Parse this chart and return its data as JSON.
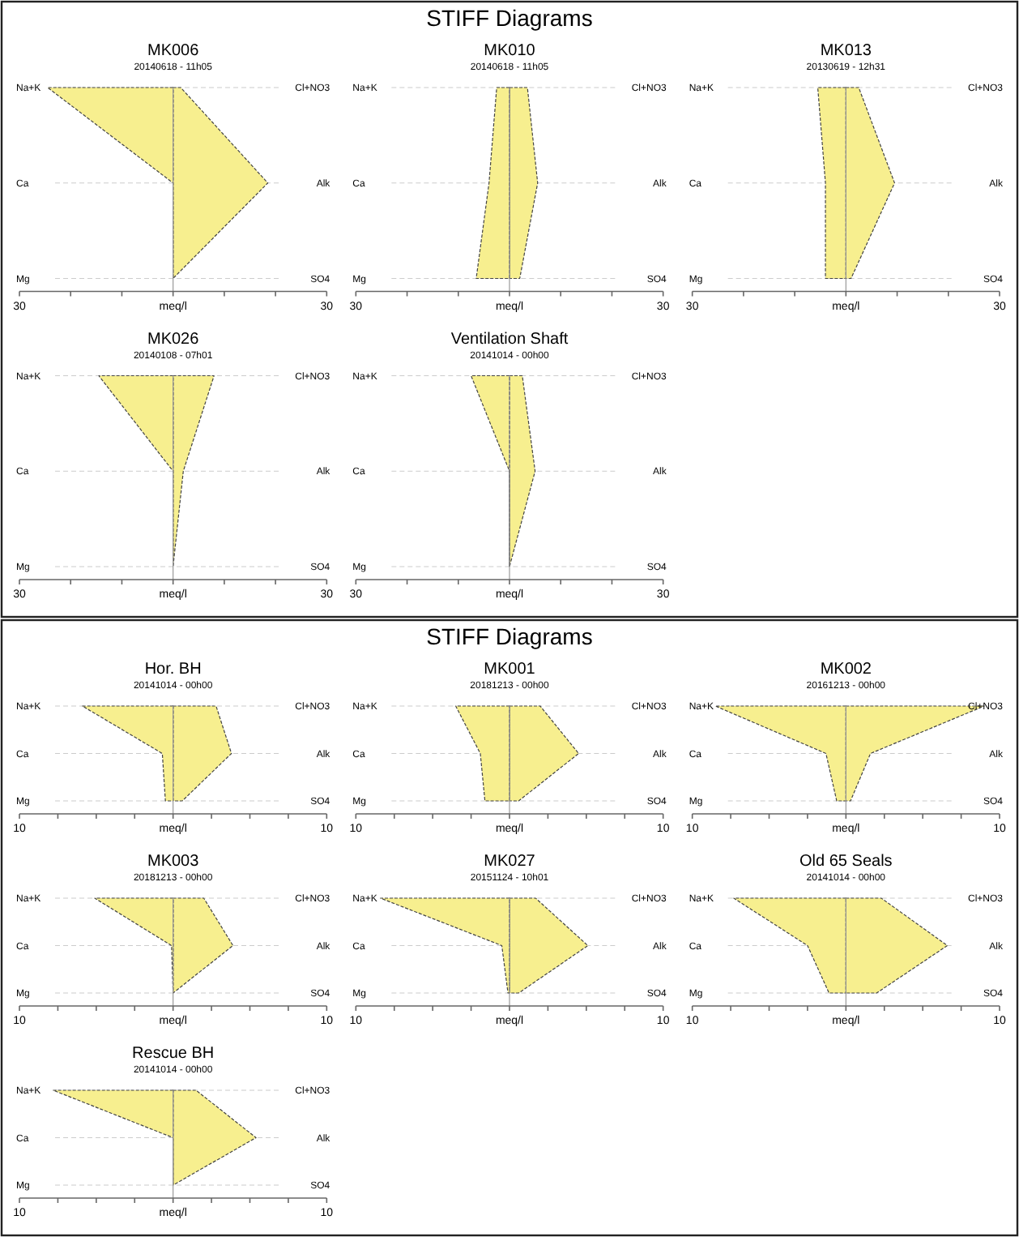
{
  "chart_data": [
    {
      "type": "area",
      "orientation": "horizontal",
      "annotations": [
        "STIFF Diagrams"
      ],
      "title": "MK006",
      "subtitle": "20140618 - 11h05",
      "xlabel": "meq/l",
      "categories": [
        "Na+K",
        "Ca",
        "Mg"
      ],
      "y2_categories": [
        "Cl+NO3",
        "Alk",
        "SO4"
      ],
      "series": [
        {
          "color": "#f7ef8f",
          "values": [
            -24.5,
            0,
            0
          ]
        },
        {
          "color": "#f7ef8f",
          "values": [
            1.5,
            18.5,
            0
          ]
        }
      ],
      "xlim": [
        -30,
        30
      ],
      "xticks": [
        {
          "value": -30,
          "label": "30"
        },
        {
          "value": -20,
          "label": null
        },
        {
          "value": -10,
          "label": null
        },
        {
          "value": 0,
          "label": null
        },
        {
          "value": 10,
          "label": null
        },
        {
          "value": 20,
          "label": null
        },
        {
          "value": 30,
          "label": "30"
        }
      ],
      "grid": "y"
    },
    {
      "type": "area",
      "orientation": "horizontal",
      "title": "MK010",
      "subtitle": "20140618 - 11h05",
      "xlabel": "meq/l",
      "categories": [
        "Na+K",
        "Ca",
        "Mg"
      ],
      "y2_categories": [
        "Cl+NO3",
        "Alk",
        "SO4"
      ],
      "series": [
        {
          "color": "#f7ef8f",
          "values": [
            -2.5,
            -4,
            -6.5
          ]
        },
        {
          "color": "#f7ef8f",
          "values": [
            3.5,
            5.5,
            2
          ]
        }
      ],
      "xlim": [
        -30,
        30
      ],
      "xticks": [
        {
          "value": -30,
          "label": "30"
        },
        {
          "value": -20,
          "label": null
        },
        {
          "value": -10,
          "label": null
        },
        {
          "value": 0,
          "label": null
        },
        {
          "value": 10,
          "label": null
        },
        {
          "value": 20,
          "label": null
        },
        {
          "value": 30,
          "label": "30"
        }
      ],
      "grid": "y"
    },
    {
      "type": "area",
      "orientation": "horizontal",
      "title": "MK013",
      "subtitle": "20130619 - 12h31",
      "xlabel": "meq/l",
      "categories": [
        "Na+K",
        "Ca",
        "Mg"
      ],
      "y2_categories": [
        "Cl+NO3",
        "Alk",
        "SO4"
      ],
      "series": [
        {
          "color": "#f7ef8f",
          "values": [
            -5.5,
            -4,
            -4
          ]
        },
        {
          "color": "#f7ef8f",
          "values": [
            2.5,
            9.5,
            1
          ]
        }
      ],
      "xlim": [
        -30,
        30
      ],
      "xticks": [
        {
          "value": -30,
          "label": "30"
        },
        {
          "value": -20,
          "label": null
        },
        {
          "value": -10,
          "label": null
        },
        {
          "value": 0,
          "label": null
        },
        {
          "value": 10,
          "label": null
        },
        {
          "value": 20,
          "label": null
        },
        {
          "value": 30,
          "label": "30"
        }
      ],
      "grid": "y"
    },
    {
      "type": "area",
      "orientation": "horizontal",
      "title": "MK026",
      "subtitle": "20140108 - 07h01",
      "xlabel": "meq/l",
      "categories": [
        "Na+K",
        "Ca",
        "Mg"
      ],
      "y2_categories": [
        "Cl+NO3",
        "Alk",
        "SO4"
      ],
      "series": [
        {
          "color": "#f7ef8f",
          "values": [
            -14.5,
            0,
            0
          ]
        },
        {
          "color": "#f7ef8f",
          "values": [
            8,
            2,
            0
          ]
        }
      ],
      "xlim": [
        -30,
        30
      ],
      "xticks": [
        {
          "value": -30,
          "label": "30"
        },
        {
          "value": -20,
          "label": null
        },
        {
          "value": -10,
          "label": null
        },
        {
          "value": 0,
          "label": null
        },
        {
          "value": 10,
          "label": null
        },
        {
          "value": 20,
          "label": null
        },
        {
          "value": 30,
          "label": "30"
        }
      ],
      "grid": "y"
    },
    {
      "type": "area",
      "orientation": "horizontal",
      "title": "Ventilation Shaft",
      "subtitle": "20141014 - 00h00",
      "xlabel": "meq/l",
      "categories": [
        "Na+K",
        "Ca",
        "Mg"
      ],
      "y2_categories": [
        "Cl+NO3",
        "Alk",
        "SO4"
      ],
      "series": [
        {
          "color": "#f7ef8f",
          "values": [
            -7.5,
            0,
            0
          ]
        },
        {
          "color": "#f7ef8f",
          "values": [
            2.5,
            5,
            0
          ]
        }
      ],
      "xlim": [
        -30,
        30
      ],
      "xticks": [
        {
          "value": -30,
          "label": "30"
        },
        {
          "value": -20,
          "label": null
        },
        {
          "value": -10,
          "label": null
        },
        {
          "value": 0,
          "label": null
        },
        {
          "value": 10,
          "label": null
        },
        {
          "value": 20,
          "label": null
        },
        {
          "value": 30,
          "label": "30"
        }
      ],
      "grid": "y"
    },
    {
      "type": "area",
      "orientation": "horizontal",
      "annotations": [
        "STIFF Diagrams"
      ],
      "title": "Hor. BH",
      "subtitle": "20141014 - 00h00",
      "xlabel": "meq/l",
      "categories": [
        "Na+K",
        "Ca",
        "Mg"
      ],
      "y2_categories": [
        "Cl+NO3",
        "Alk",
        "SO4"
      ],
      "series": [
        {
          "color": "#f7ef8f",
          "values": [
            -5.9,
            -0.7,
            -0.5
          ]
        },
        {
          "color": "#f7ef8f",
          "values": [
            2.8,
            3.8,
            0.6
          ]
        }
      ],
      "xlim": [
        -10,
        10
      ],
      "xticks": [
        {
          "value": -10,
          "label": "10"
        },
        {
          "value": -7.5,
          "label": null
        },
        {
          "value": -5,
          "label": null
        },
        {
          "value": -2.5,
          "label": null
        },
        {
          "value": 0,
          "label": null
        },
        {
          "value": 2.5,
          "label": null
        },
        {
          "value": 5,
          "label": null
        },
        {
          "value": 7.5,
          "label": null
        },
        {
          "value": 10,
          "label": "10"
        }
      ],
      "grid": "y"
    },
    {
      "type": "area",
      "orientation": "horizontal",
      "title": "MK001",
      "subtitle": "20181213 - 00h00",
      "xlabel": "meq/l",
      "categories": [
        "Na+K",
        "Ca",
        "Mg"
      ],
      "y2_categories": [
        "Cl+NO3",
        "Alk",
        "SO4"
      ],
      "series": [
        {
          "color": "#f7ef8f",
          "values": [
            -3.5,
            -1.9,
            -1.6
          ]
        },
        {
          "color": "#f7ef8f",
          "values": [
            2,
            4.5,
            0.6
          ]
        }
      ],
      "xlim": [
        -10,
        10
      ],
      "xticks": [
        {
          "value": -10,
          "label": "10"
        },
        {
          "value": -7.5,
          "label": null
        },
        {
          "value": -5,
          "label": null
        },
        {
          "value": -2.5,
          "label": null
        },
        {
          "value": 0,
          "label": null
        },
        {
          "value": 2.5,
          "label": null
        },
        {
          "value": 5,
          "label": null
        },
        {
          "value": 7.5,
          "label": null
        },
        {
          "value": 10,
          "label": "10"
        }
      ],
      "grid": "y"
    },
    {
      "type": "area",
      "orientation": "horizontal",
      "title": "MK002",
      "subtitle": "20161213 - 00h00",
      "xlabel": "meq/l",
      "categories": [
        "Na+K",
        "Ca",
        "Mg"
      ],
      "y2_categories": [
        "Cl+NO3",
        "Alk",
        "SO4"
      ],
      "series": [
        {
          "color": "#f7ef8f",
          "values": [
            -8.5,
            -1.3,
            -0.6
          ]
        },
        {
          "color": "#f7ef8f",
          "values": [
            9,
            1.6,
            0.3
          ]
        }
      ],
      "xlim": [
        -10,
        10
      ],
      "xticks": [
        {
          "value": -10,
          "label": "10"
        },
        {
          "value": -7.5,
          "label": null
        },
        {
          "value": -5,
          "label": null
        },
        {
          "value": -2.5,
          "label": null
        },
        {
          "value": 0,
          "label": null
        },
        {
          "value": 2.5,
          "label": null
        },
        {
          "value": 5,
          "label": null
        },
        {
          "value": 7.5,
          "label": null
        },
        {
          "value": 10,
          "label": "10"
        }
      ],
      "grid": "y"
    },
    {
      "type": "area",
      "orientation": "horizontal",
      "title": "MK003",
      "subtitle": "20181213 - 00h00",
      "xlabel": "meq/l",
      "categories": [
        "Na+K",
        "Ca",
        "Mg"
      ],
      "y2_categories": [
        "Cl+NO3",
        "Alk",
        "SO4"
      ],
      "series": [
        {
          "color": "#f7ef8f",
          "values": [
            -5.1,
            -0.1,
            0
          ]
        },
        {
          "color": "#f7ef8f",
          "values": [
            2,
            3.9,
            0
          ]
        }
      ],
      "xlim": [
        -10,
        10
      ],
      "xticks": [
        {
          "value": -10,
          "label": "10"
        },
        {
          "value": -7.5,
          "label": null
        },
        {
          "value": -5,
          "label": null
        },
        {
          "value": -2.5,
          "label": null
        },
        {
          "value": 0,
          "label": null
        },
        {
          "value": 2.5,
          "label": null
        },
        {
          "value": 5,
          "label": null
        },
        {
          "value": 7.5,
          "label": null
        },
        {
          "value": 10,
          "label": "10"
        }
      ],
      "grid": "y"
    },
    {
      "type": "area",
      "orientation": "horizontal",
      "title": "MK027",
      "subtitle": "20151124 - 10h01",
      "xlabel": "meq/l",
      "categories": [
        "Na+K",
        "Ca",
        "Mg"
      ],
      "y2_categories": [
        "Cl+NO3",
        "Alk",
        "SO4"
      ],
      "series": [
        {
          "color": "#f7ef8f",
          "values": [
            -8.4,
            -0.5,
            -0.1
          ]
        },
        {
          "color": "#f7ef8f",
          "values": [
            1.7,
            5.1,
            0.6
          ]
        }
      ],
      "xlim": [
        -10,
        10
      ],
      "xticks": [
        {
          "value": -10,
          "label": "10"
        },
        {
          "value": -7.5,
          "label": null
        },
        {
          "value": -5,
          "label": null
        },
        {
          "value": -2.5,
          "label": null
        },
        {
          "value": 0,
          "label": null
        },
        {
          "value": 2.5,
          "label": null
        },
        {
          "value": 5,
          "label": null
        },
        {
          "value": 7.5,
          "label": null
        },
        {
          "value": 10,
          "label": "10"
        }
      ],
      "grid": "y"
    },
    {
      "type": "area",
      "orientation": "horizontal",
      "title": "Old 65 Seals",
      "subtitle": "20141014 - 00h00",
      "xlabel": "meq/l",
      "categories": [
        "Na+K",
        "Ca",
        "Mg"
      ],
      "y2_categories": [
        "Cl+NO3",
        "Alk",
        "SO4"
      ],
      "series": [
        {
          "color": "#f7ef8f",
          "values": [
            -7.3,
            -2.5,
            -1.1
          ]
        },
        {
          "color": "#f7ef8f",
          "values": [
            2.3,
            6.6,
            2
          ]
        }
      ],
      "xlim": [
        -10,
        10
      ],
      "xticks": [
        {
          "value": -10,
          "label": "10"
        },
        {
          "value": -7.5,
          "label": null
        },
        {
          "value": -5,
          "label": null
        },
        {
          "value": -2.5,
          "label": null
        },
        {
          "value": 0,
          "label": null
        },
        {
          "value": 2.5,
          "label": null
        },
        {
          "value": 5,
          "label": null
        },
        {
          "value": 7.5,
          "label": null
        },
        {
          "value": 10,
          "label": "10"
        }
      ],
      "grid": "y"
    },
    {
      "type": "area",
      "orientation": "horizontal",
      "title": "Rescue BH",
      "subtitle": "20141014 - 00h00",
      "xlabel": "meq/l",
      "categories": [
        "Na+K",
        "Ca",
        "Mg"
      ],
      "y2_categories": [
        "Cl+NO3",
        "Alk",
        "SO4"
      ],
      "series": [
        {
          "color": "#f7ef8f",
          "values": [
            -7.8,
            0,
            0
          ]
        },
        {
          "color": "#f7ef8f",
          "values": [
            1.5,
            5.4,
            0
          ]
        }
      ],
      "xlim": [
        -10,
        10
      ],
      "xticks": [
        {
          "value": -10,
          "label": "10"
        },
        {
          "value": -7.5,
          "label": null
        },
        {
          "value": -5,
          "label": null
        },
        {
          "value": -2.5,
          "label": null
        },
        {
          "value": 0,
          "label": null
        },
        {
          "value": 2.5,
          "label": null
        },
        {
          "value": 5,
          "label": null
        },
        {
          "value": 7.5,
          "label": null
        },
        {
          "value": 10,
          "label": "10"
        }
      ],
      "grid": "y"
    }
  ]
}
